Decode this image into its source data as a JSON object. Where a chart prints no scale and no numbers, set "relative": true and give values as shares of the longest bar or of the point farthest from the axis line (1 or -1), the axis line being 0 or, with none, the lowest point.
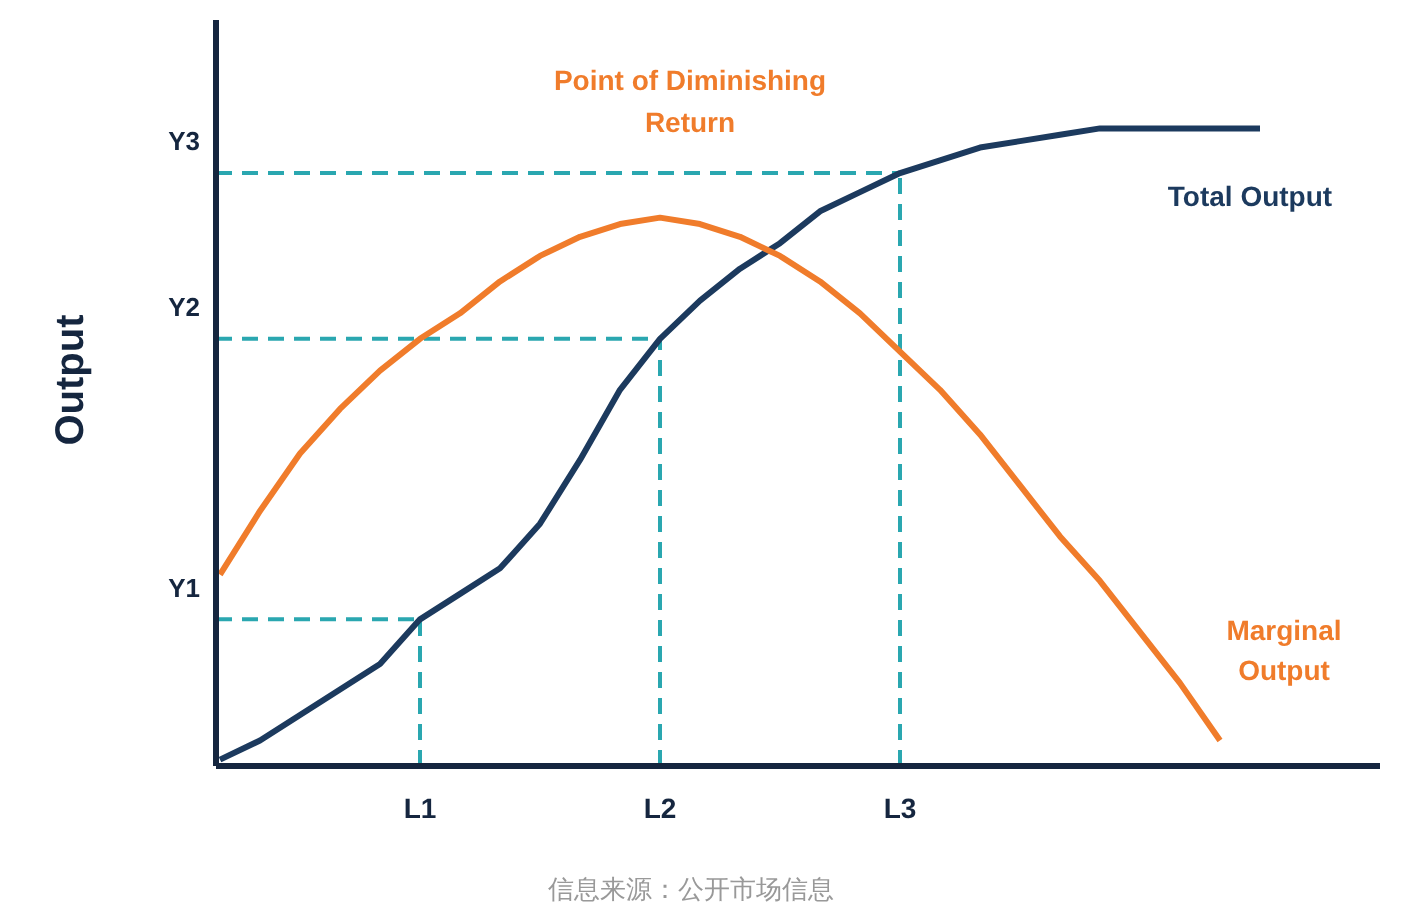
{
  "chart_data": {
    "type": "line",
    "relative": true,
    "ylabel": "Output",
    "categories": [
      null,
      null,
      null,
      null,
      null,
      "L1",
      null,
      null,
      null,
      null,
      null,
      "L2",
      null,
      null,
      null,
      null,
      null,
      "L3",
      null,
      null,
      null,
      null,
      null,
      null,
      null,
      null,
      null,
      null,
      null,
      null
    ],
    "series": [
      {
        "name": "Total Output",
        "color": "#1c3a5e",
        "values": [
          0.01,
          0.04,
          0.08,
          0.12,
          0.16,
          0.23,
          0.27,
          0.31,
          0.38,
          0.48,
          0.59,
          0.67,
          0.73,
          0.78,
          0.82,
          0.87,
          0.9,
          0.93,
          0.95,
          0.97,
          0.98,
          0.99,
          1,
          1,
          1,
          1,
          1,
          null,
          null,
          null
        ]
      },
      {
        "name": "Marginal Output",
        "color": "#f07c2b",
        "values": [
          0.3,
          0.4,
          0.49,
          0.56,
          0.62,
          0.67,
          0.71,
          0.76,
          0.8,
          0.83,
          0.85,
          0.86,
          0.85,
          0.83,
          0.8,
          0.76,
          0.71,
          0.65,
          0.59,
          0.52,
          0.44,
          0.36,
          0.29,
          0.21,
          0.13,
          0.04,
          null,
          null,
          null,
          null
        ]
      }
    ],
    "ref_lines": [
      {
        "axis": "x",
        "value": "L1",
        "label": null,
        "color": "#2aa7b0",
        "line_style": "dashed"
      },
      {
        "axis": "x",
        "value": "L2",
        "label": null,
        "color": "#2aa7b0",
        "line_style": "dashed"
      },
      {
        "axis": "x",
        "value": "L3",
        "label": null,
        "color": "#2aa7b0",
        "line_style": "dashed"
      },
      {
        "axis": "y",
        "value": 0.23,
        "label": "Y1",
        "color": "#2aa7b0",
        "line_style": "dashed"
      },
      {
        "axis": "y",
        "value": 0.67,
        "label": "Y2",
        "color": "#2aa7b0",
        "line_style": "dashed"
      },
      {
        "axis": "y",
        "value": 0.93,
        "label": "Y3",
        "color": "#2aa7b0",
        "line_style": "dashed"
      }
    ],
    "annotations": [
      "Point of Diminishing Return",
      "信息来源：公开市场信息"
    ],
    "legend": false,
    "grid": false,
    "marker": "none",
    "line_style": "solid"
  }
}
